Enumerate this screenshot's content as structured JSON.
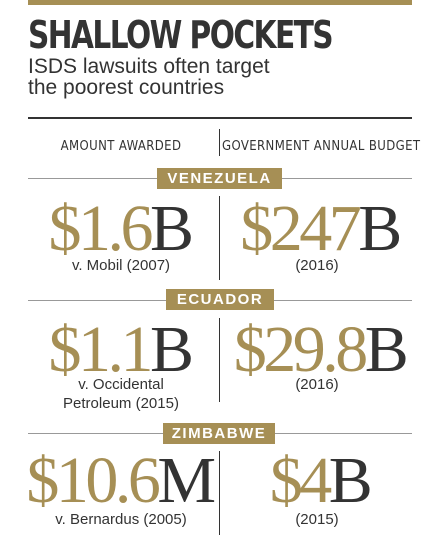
{
  "title": "SHALLOW POCKETS",
  "subtitle": [
    "ISDS lawsuits often target",
    "the poorest countries"
  ],
  "columns": {
    "left": "AMOUNT AWARDED",
    "right": "GOVERNMENT ANNUAL BUDGET"
  },
  "colors": {
    "gold": "#A68F55",
    "dark": "#333333",
    "rule": "#999999"
  },
  "sections": [
    {
      "country": "VENEZUELA",
      "award": {
        "number": "$1.6",
        "unit": "B",
        "caption": [
          "v. Mobil (2007)"
        ]
      },
      "budget": {
        "number": "$247",
        "unit": "B",
        "caption": [
          "(2016)"
        ]
      }
    },
    {
      "country": "ECUADOR",
      "award": {
        "number": "$1.1",
        "unit": "B",
        "caption": [
          "v. Occidental",
          "Petroleum (2015)"
        ]
      },
      "budget": {
        "number": "$29.8",
        "unit": "B",
        "caption": [
          "(2016)"
        ]
      }
    },
    {
      "country": "ZIMBABWE",
      "award": {
        "number": "$10.6",
        "unit": "M",
        "caption": [
          "v. Bernardus (2005)"
        ]
      },
      "budget": {
        "number": "$4",
        "unit": "B",
        "caption": [
          "(2015)"
        ]
      }
    }
  ]
}
